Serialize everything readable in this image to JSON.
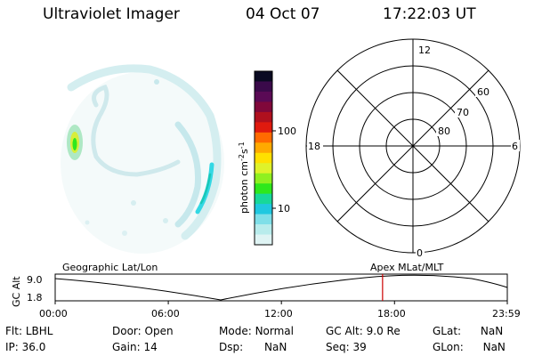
{
  "header": {
    "instrument": "Ultraviolet Imager",
    "date": "04 Oct 07",
    "time": "17:22:03 UT"
  },
  "colorbar": {
    "label": "photon cm",
    "label_sup1": "-2",
    "label_mid": "s",
    "label_sup2": "-1",
    "tick_100": "100",
    "tick_10": "10",
    "colors": [
      "#0a0a22",
      "#3a0a4a",
      "#5a0a55",
      "#80083a",
      "#b0101e",
      "#e01a0e",
      "#ff6a00",
      "#ffaa00",
      "#ffe000",
      "#dff22a",
      "#8ff020",
      "#2ee81c",
      "#18d89a",
      "#20c8e0",
      "#7fdfe8",
      "#b8ecec",
      "#dff4f4"
    ]
  },
  "polar": {
    "mlt_12": "12",
    "mlt_18": "18",
    "mlt_6": "6",
    "mlt_0": "0",
    "lat_60": "60",
    "lat_70": "70",
    "lat_80": "80"
  },
  "timeline": {
    "left_title": "Geographic Lat/Lon",
    "right_title": "Apex MLat/MLT",
    "y_label": "GC Alt",
    "y_max": "9.0",
    "y_min": "1.8",
    "ticks": [
      "00:00",
      "06:00",
      "12:00",
      "18:00",
      "23:59"
    ],
    "marker_time": "17:22",
    "marker_color": "#cc0000"
  },
  "info": {
    "flt_label": "Flt:",
    "flt_value": "LBHL",
    "ip_label": "IP:",
    "ip_value": "36.0",
    "door_label": "Door:",
    "door_value": "Open",
    "gain_label": "Gain:",
    "gain_value": "14",
    "mode_label": "Mode:",
    "mode_value": "Normal",
    "dsp_label": "Dsp:",
    "dsp_value": "NaN",
    "gcalt_label": "GC Alt:",
    "gcalt_value": "9.0 Re",
    "seq_label": "Seq:",
    "seq_value": "39",
    "glat_label": "GLat:",
    "glat_value": "NaN",
    "glon_label": "GLon:",
    "glon_value": "NaN"
  }
}
